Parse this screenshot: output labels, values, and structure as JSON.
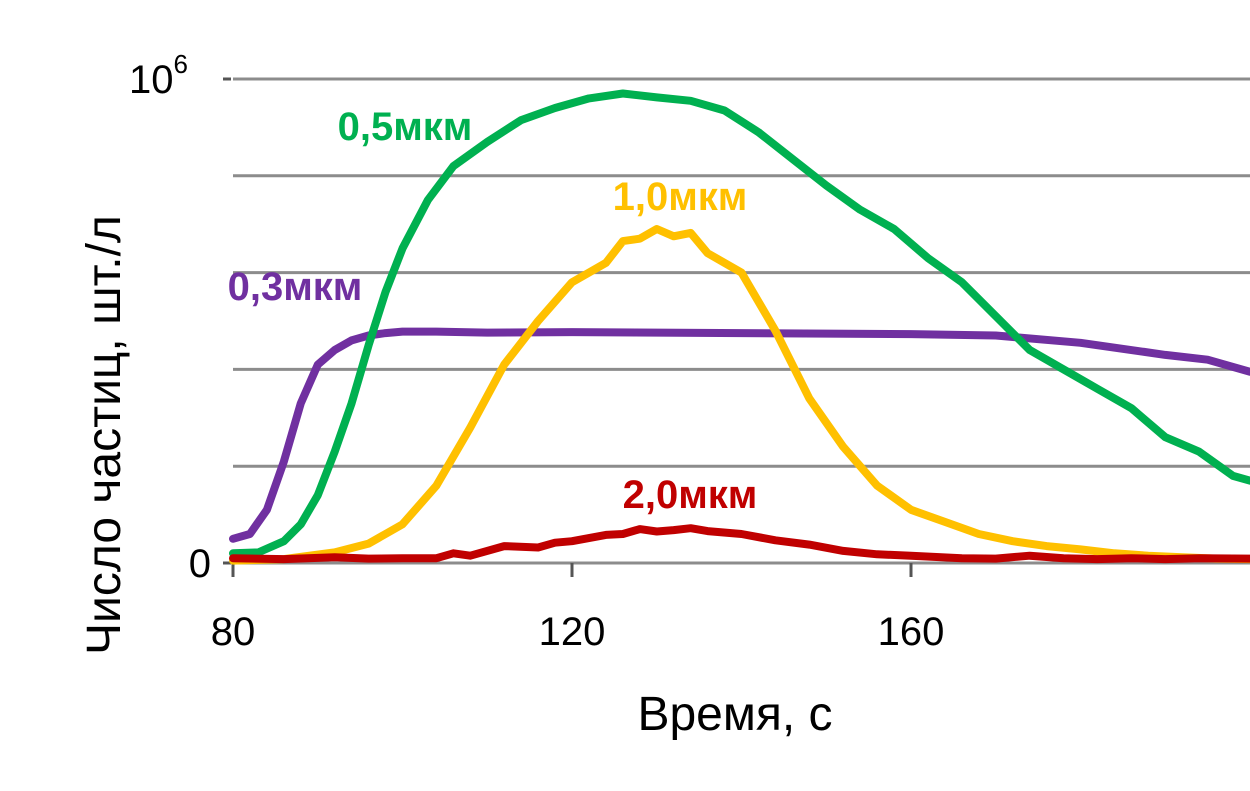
{
  "chart_data": {
    "type": "line",
    "xlabel": "Время, с",
    "ylabel": "Число частиц, шт./л",
    "xlim": [
      80,
      200
    ],
    "ylim": [
      0,
      1000000
    ],
    "x_ticks": [
      80,
      120,
      160
    ],
    "x_tick_labels": [
      "80",
      "120",
      "160"
    ],
    "y_ticks": [
      {
        "base": "0",
        "exp": "",
        "value": 0
      },
      {
        "base": "10",
        "exp": "6",
        "value": 1000000
      }
    ],
    "y_gridlines": [
      0,
      200000,
      400000,
      600000,
      800000,
      1000000
    ],
    "grid": true,
    "series": [
      {
        "name": "0,3мкм",
        "color": "#7030A0",
        "x": [
          80,
          82,
          84,
          86,
          88,
          90,
          92,
          94,
          96,
          98,
          100,
          104,
          110,
          120,
          130,
          140,
          150,
          160,
          170,
          180,
          190,
          195,
          200
        ],
        "values": [
          50000,
          60000,
          110000,
          210000,
          330000,
          410000,
          440000,
          460000,
          470000,
          475000,
          478000,
          478000,
          476000,
          477000,
          476000,
          475000,
          474000,
          473000,
          470000,
          455000,
          430000,
          420000,
          395000
        ]
      },
      {
        "name": "0,5мкм",
        "color": "#00B050",
        "x": [
          80,
          83,
          86,
          88,
          90,
          92,
          94,
          96,
          98,
          100,
          103,
          106,
          110,
          114,
          118,
          122,
          126,
          130,
          134,
          138,
          142,
          146,
          150,
          154,
          158,
          162,
          166,
          170,
          174,
          178,
          182,
          186,
          190,
          194,
          198,
          200
        ],
        "values": [
          20000,
          22000,
          45000,
          80000,
          140000,
          230000,
          330000,
          450000,
          560000,
          650000,
          750000,
          820000,
          870000,
          915000,
          940000,
          960000,
          970000,
          962000,
          955000,
          935000,
          890000,
          835000,
          780000,
          730000,
          690000,
          630000,
          580000,
          510000,
          440000,
          400000,
          360000,
          320000,
          260000,
          230000,
          180000,
          170000
        ]
      },
      {
        "name": "1,0мкм",
        "color": "#FFC000",
        "x": [
          80,
          86,
          92,
          96,
          100,
          104,
          108,
          112,
          116,
          120,
          124,
          126,
          128,
          130,
          132,
          134,
          136,
          140,
          144,
          148,
          152,
          156,
          160,
          164,
          168,
          172,
          176,
          180,
          184,
          188,
          192,
          196,
          200
        ],
        "values": [
          5000,
          8000,
          22000,
          40000,
          80000,
          160000,
          280000,
          410000,
          500000,
          580000,
          620000,
          665000,
          670000,
          690000,
          675000,
          682000,
          640000,
          600000,
          480000,
          340000,
          240000,
          160000,
          110000,
          85000,
          60000,
          45000,
          35000,
          28000,
          20000,
          15000,
          12000,
          9000,
          8000
        ]
      },
      {
        "name": "2,0мкм",
        "color": "#C00000",
        "x": [
          80,
          86,
          92,
          96,
          100,
          104,
          106,
          108,
          112,
          116,
          118,
          120,
          124,
          126,
          128,
          130,
          132,
          134,
          136,
          140,
          144,
          148,
          152,
          156,
          160,
          166,
          170,
          174,
          178,
          182,
          186,
          190,
          194,
          200
        ],
        "values": [
          10000,
          8000,
          12000,
          9000,
          10000,
          10000,
          20000,
          15000,
          35000,
          32000,
          42000,
          45000,
          58000,
          60000,
          70000,
          65000,
          68000,
          72000,
          66000,
          60000,
          47000,
          38000,
          25000,
          18000,
          15000,
          10000,
          9000,
          15000,
          10000,
          8000,
          10000,
          8000,
          10000,
          9000
        ]
      }
    ]
  }
}
